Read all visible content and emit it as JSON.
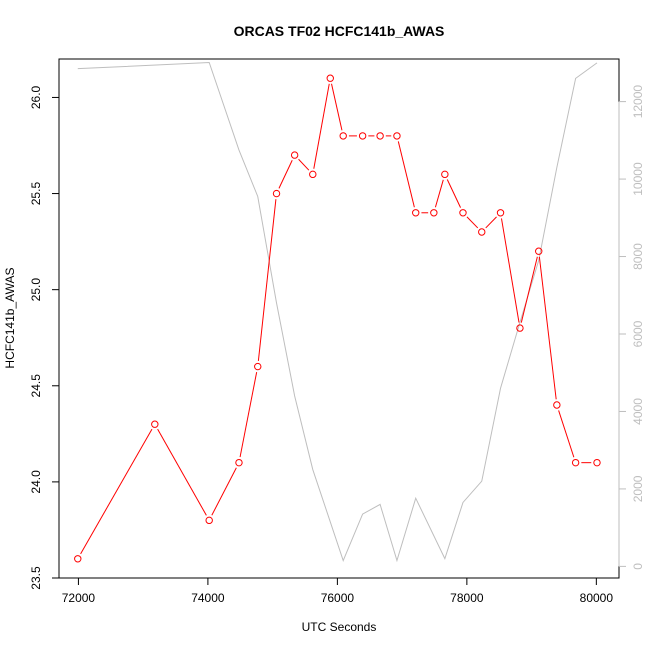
{
  "chart_data": {
    "type": "line",
    "title": "ORCAS TF02 HCFC141b_AWAS",
    "xlabel": "UTC Seconds",
    "ylabel": "HCFC141b_AWAS",
    "xlim": [
      71700,
      80350
    ],
    "ylim": [
      23.5,
      26.2
    ],
    "y2lim": [
      -300,
      13100
    ],
    "x_ticks": [
      72000,
      74000,
      76000,
      78000,
      80000
    ],
    "x_tick_labels": [
      "72000",
      "74000",
      "76000",
      "78000",
      "80000"
    ],
    "y_ticks": [
      23.5,
      24.0,
      24.5,
      25.0,
      25.5,
      26.0
    ],
    "y_tick_labels": [
      "23.5",
      "24.0",
      "24.5",
      "25.0",
      "25.5",
      "26.0"
    ],
    "y2_ticks": [
      0,
      2000,
      4000,
      6000,
      8000,
      10000,
      12000
    ],
    "y2_tick_labels": [
      "0",
      "2000",
      "4000",
      "6000",
      "8000",
      "10000",
      "12000"
    ],
    "series": [
      {
        "axis": "left",
        "color": "#ff0000",
        "marker": "open-circle",
        "x": [
          71990,
          73180,
          74020,
          74480,
          74770,
          75060,
          75340,
          75620,
          75890,
          76090,
          76390,
          76660,
          76920,
          77210,
          77490,
          77660,
          77940,
          78230,
          78520,
          78820,
          79110,
          79390,
          79680,
          80010
        ],
        "y": [
          23.6,
          24.3,
          23.8,
          24.1,
          24.6,
          25.5,
          25.7,
          25.6,
          26.1,
          25.8,
          25.8,
          25.8,
          25.8,
          25.4,
          25.4,
          25.6,
          25.4,
          25.3,
          25.4,
          24.8,
          25.2,
          24.4,
          24.1,
          24.1
        ]
      },
      {
        "axis": "right",
        "color": "#bebebe",
        "marker": "none",
        "x": [
          71990,
          74020,
          74480,
          74770,
          75060,
          75340,
          75620,
          76090,
          76390,
          76660,
          76920,
          77210,
          77660,
          77940,
          78230,
          78520,
          78820,
          79110,
          79390,
          79680,
          80010
        ],
        "y": [
          12850,
          13010,
          10750,
          9550,
          6800,
          4400,
          2500,
          150,
          1350,
          1600,
          150,
          1760,
          200,
          1650,
          2200,
          4600,
          6300,
          7900,
          10300,
          12600,
          13000
        ]
      }
    ]
  }
}
